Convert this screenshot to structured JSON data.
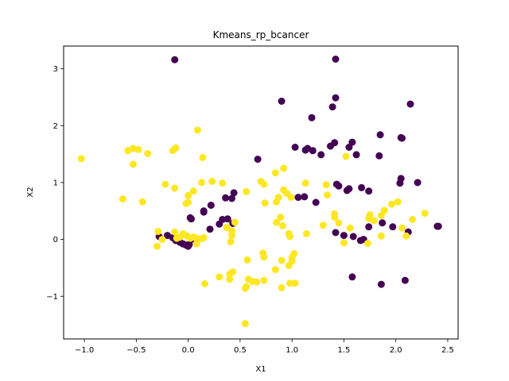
{
  "chart_data": {
    "type": "scatter",
    "title": "Kmeans_rp_bcancer",
    "xlabel": "X1",
    "ylabel": "X2",
    "xlim": [
      -1.2,
      2.6
    ],
    "ylim": [
      -1.75,
      3.4
    ],
    "xticks": [
      "−1.0",
      "−0.5",
      "0.0",
      "0.5",
      "1.0",
      "1.5",
      "2.0",
      "2.5"
    ],
    "yticks": [
      "−1",
      "0",
      "1",
      "2",
      "3"
    ],
    "grid": false,
    "colors": {
      "cluster_0": "#440154",
      "cluster_1": "#fde725"
    },
    "series": [
      {
        "color": "#440154",
        "points": [
          [
            -0.13,
            3.16
          ],
          [
            1.42,
            3.17
          ],
          [
            0.9,
            2.43
          ],
          [
            1.42,
            2.49
          ],
          [
            1.39,
            2.33
          ],
          [
            2.14,
            2.38
          ],
          [
            1.19,
            2.14
          ],
          [
            1.55,
            1.62
          ],
          [
            1.58,
            1.71
          ],
          [
            1.85,
            1.84
          ],
          [
            2.05,
            1.79
          ],
          [
            2.06,
            1.78
          ],
          [
            1.41,
            1.7
          ],
          [
            1.37,
            1.64
          ],
          [
            1.15,
            1.6
          ],
          [
            1.13,
            1.57
          ],
          [
            1.03,
            1.62
          ],
          [
            1.2,
            1.56
          ],
          [
            1.28,
            1.49
          ],
          [
            1.62,
            1.49
          ],
          [
            1.84,
            1.47
          ],
          [
            0.67,
            1.41
          ],
          [
            2.05,
            1.07
          ],
          [
            2.21,
            1.0
          ],
          [
            2.04,
            0.99
          ],
          [
            1.43,
            0.97
          ],
          [
            1.45,
            0.94
          ],
          [
            1.53,
            0.86
          ],
          [
            1.55,
            0.89
          ],
          [
            1.74,
            0.85
          ],
          [
            1.67,
            0.91
          ],
          [
            1.06,
            0.74
          ],
          [
            1.12,
            0.75
          ],
          [
            0.44,
            0.82
          ],
          [
            0.42,
            0.72
          ],
          [
            0.22,
            0.6
          ],
          [
            0.36,
            0.73
          ],
          [
            0.15,
            0.5
          ],
          [
            0.15,
            0.48
          ],
          [
            0.38,
            0.36
          ],
          [
            0.33,
            0.35
          ],
          [
            0.3,
            0.27
          ],
          [
            0.21,
            0.18
          ],
          [
            0.02,
            0.38
          ],
          [
            0.03,
            0.36
          ],
          [
            1.23,
            0.65
          ],
          [
            1.87,
            0.29
          ],
          [
            1.97,
            0.22
          ],
          [
            2.12,
            0.13
          ],
          [
            2.4,
            0.23
          ],
          [
            2.41,
            0.23
          ],
          [
            1.74,
            0.22
          ],
          [
            1.42,
            0.12
          ],
          [
            1.5,
            0.07
          ],
          [
            1.59,
            0.05
          ],
          [
            1.66,
            -0.02
          ],
          [
            1.69,
            0.0
          ],
          [
            -0.28,
            0.05
          ],
          [
            -0.2,
            0.07
          ],
          [
            -0.15,
            0.03
          ],
          [
            -0.12,
            -0.02
          ],
          [
            -0.08,
            -0.05
          ],
          [
            -0.05,
            -0.08
          ],
          [
            -0.02,
            -0.1
          ],
          [
            0.0,
            -0.12
          ],
          [
            0.01,
            -0.09
          ],
          [
            0.03,
            0.0
          ],
          [
            0.06,
            0.02
          ],
          [
            -0.1,
            0.0
          ],
          [
            1.58,
            -0.66
          ],
          [
            1.86,
            -0.79
          ],
          [
            2.09,
            -0.72
          ],
          [
            0.43,
            0.28
          ]
        ]
      },
      {
        "color": "#fde725",
        "points": [
          [
            -1.03,
            1.42
          ],
          [
            -0.58,
            1.56
          ],
          [
            -0.53,
            1.6
          ],
          [
            -0.48,
            1.58
          ],
          [
            -0.39,
            1.51
          ],
          [
            -0.53,
            1.32
          ],
          [
            -0.12,
            1.61
          ],
          [
            -0.15,
            1.56
          ],
          [
            0.09,
            1.92
          ],
          [
            0.14,
            1.44
          ],
          [
            -0.63,
            0.71
          ],
          [
            -0.44,
            0.66
          ],
          [
            -0.22,
            0.97
          ],
          [
            -0.13,
            0.9
          ],
          [
            0.0,
            0.77
          ],
          [
            0.05,
            0.85
          ],
          [
            0.0,
            0.65
          ],
          [
            -0.02,
            0.63
          ],
          [
            0.13,
            1.0
          ],
          [
            0.23,
            1.02
          ],
          [
            0.33,
            0.99
          ],
          [
            0.56,
            0.84
          ],
          [
            0.7,
            1.02
          ],
          [
            0.73,
            0.97
          ],
          [
            0.74,
            0.64
          ],
          [
            0.85,
            0.66
          ],
          [
            0.87,
            0.74
          ],
          [
            0.92,
            0.87
          ],
          [
            0.95,
            0.81
          ],
          [
            0.99,
            0.74
          ],
          [
            0.84,
            1.17
          ],
          [
            0.92,
            1.25
          ],
          [
            1.13,
            0.99
          ],
          [
            1.34,
            0.78
          ],
          [
            1.41,
            0.45
          ],
          [
            1.41,
            0.39
          ],
          [
            1.45,
            0.29
          ],
          [
            1.52,
            1.46
          ],
          [
            1.33,
            0.96
          ],
          [
            1.75,
            0.43
          ],
          [
            1.74,
            0.37
          ],
          [
            1.79,
            0.33
          ],
          [
            1.86,
            0.42
          ],
          [
            1.89,
            0.51
          ],
          [
            1.96,
            0.62
          ],
          [
            2.02,
            0.66
          ],
          [
            2.16,
            0.35
          ],
          [
            2.28,
            0.46
          ],
          [
            2.06,
            0.2
          ],
          [
            2.1,
            0.06
          ],
          [
            1.86,
            0.06
          ],
          [
            1.73,
            -0.07
          ],
          [
            1.56,
            0.2
          ],
          [
            1.5,
            -0.06
          ],
          [
            1.3,
            0.25
          ],
          [
            1.14,
            0.1
          ],
          [
            0.97,
            0.1
          ],
          [
            0.98,
            0.05
          ],
          [
            0.85,
            0.3
          ],
          [
            0.91,
            0.24
          ],
          [
            0.89,
            0.39
          ],
          [
            0.45,
            0.3
          ],
          [
            0.42,
            0.15
          ],
          [
            0.42,
            0.07
          ],
          [
            0.41,
            -0.04
          ],
          [
            0.37,
            0.21
          ],
          [
            0.15,
            0.03
          ],
          [
            0.12,
            0.01
          ],
          [
            0.08,
            -0.08
          ],
          [
            0.07,
            0.03
          ],
          [
            0.05,
            0.04
          ],
          [
            0.02,
            0.02
          ],
          [
            -0.01,
            0.06
          ],
          [
            -0.05,
            0.1
          ],
          [
            -0.08,
            0.04
          ],
          [
            -0.11,
            0.02
          ],
          [
            -0.13,
            0.13
          ],
          [
            -0.29,
            0.14
          ],
          [
            -0.3,
            -0.12
          ],
          [
            -0.25,
            0.0
          ],
          [
            0.72,
            -0.24
          ],
          [
            0.73,
            -0.31
          ],
          [
            0.57,
            -0.36
          ],
          [
            0.9,
            -0.37
          ],
          [
            1.0,
            -0.38
          ],
          [
            1.0,
            -0.32
          ],
          [
            1.02,
            -0.25
          ],
          [
            0.97,
            -0.46
          ],
          [
            0.84,
            -0.53
          ],
          [
            0.43,
            -0.57
          ],
          [
            0.4,
            -0.61
          ],
          [
            0.58,
            -0.7
          ],
          [
            0.62,
            -0.74
          ],
          [
            0.66,
            -0.75
          ],
          [
            0.73,
            -0.72
          ],
          [
            0.4,
            -0.7
          ],
          [
            0.3,
            -0.66
          ],
          [
            0.16,
            -0.78
          ],
          [
            0.56,
            -0.83
          ],
          [
            0.55,
            -0.86
          ],
          [
            0.9,
            -0.85
          ],
          [
            0.98,
            -0.77
          ],
          [
            1.03,
            -0.77
          ],
          [
            0.55,
            -1.48
          ]
        ]
      }
    ]
  }
}
